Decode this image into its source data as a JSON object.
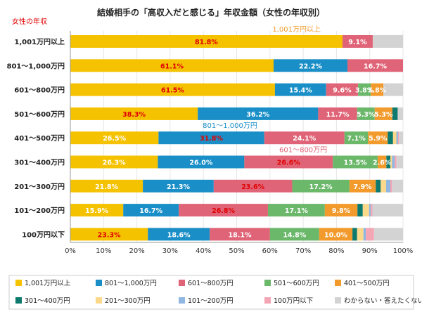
{
  "chart_data": {
    "type": "bar",
    "orientation": "horizontal",
    "stacked": true,
    "title": "結婚相手の「高収入だと感じる」年収金額（女性の年収別）",
    "ylabel": "女性の年収",
    "xlabel": "",
    "xlim": [
      0,
      100
    ],
    "x_ticks": [
      "0%",
      "10%",
      "20%",
      "30%",
      "40%",
      "50%",
      "60%",
      "70%",
      "80%",
      "90%",
      "100%"
    ],
    "legend_position": "bottom",
    "categories": [
      "1,001万円以上",
      "801〜1,000万円",
      "601〜800万円",
      "501〜600万円",
      "401〜500万円",
      "301〜400万円",
      "201〜300万円",
      "101〜200万円",
      "100万円以下"
    ],
    "series": [
      {
        "name": "1,001万円以上",
        "color": "#f5c200",
        "values": [
          81.8,
          61.1,
          61.5,
          38.3,
          26.5,
          26.3,
          21.8,
          15.9,
          23.3
        ]
      },
      {
        "name": "801〜1,000万円",
        "color": "#1a8fc7",
        "values": [
          0,
          22.2,
          15.4,
          36.2,
          31.8,
          26.0,
          21.3,
          16.7,
          18.6
        ]
      },
      {
        "name": "601〜800万円",
        "color": "#e06477",
        "values": [
          9.1,
          16.7,
          9.6,
          11.7,
          24.1,
          26.6,
          23.6,
          26.8,
          18.1
        ]
      },
      {
        "name": "501〜600万円",
        "color": "#6bb86b",
        "values": [
          0,
          0,
          3.8,
          5.3,
          7.1,
          13.5,
          17.2,
          17.1,
          14.8
        ]
      },
      {
        "name": "401〜500万円",
        "color": "#f39a2c",
        "values": [
          0,
          0,
          3.8,
          5.3,
          5.9,
          2.6,
          7.9,
          9.8,
          10.0
        ]
      },
      {
        "name": "301〜400万円",
        "color": "#0e7a6e",
        "values": [
          0,
          0,
          0,
          1.6,
          1.6,
          1.2,
          1.5,
          1.6,
          1.4
        ]
      },
      {
        "name": "201〜300万円",
        "color": "#fbd98a",
        "values": [
          0,
          0,
          0,
          0,
          1.0,
          0.5,
          1.6,
          1.9,
          1.9
        ]
      },
      {
        "name": "101〜200万円",
        "color": "#8fb7e2",
        "values": [
          0,
          0,
          0,
          0,
          0.5,
          0.8,
          1.3,
          0.5,
          0.7
        ]
      },
      {
        "name": "100万円以下",
        "color": "#f4a6b5",
        "values": [
          0,
          0,
          0,
          0,
          0.3,
          0.5,
          0.5,
          0.5,
          2.5
        ]
      },
      {
        "name": "わからない・答えたくない",
        "color": "#d3d3d3",
        "values": [
          9.1,
          0,
          5.9,
          1.6,
          1.2,
          2.0,
          3.3,
          9.2,
          8.7
        ]
      }
    ],
    "data_labels": [
      {
        "row": 0,
        "series": 0,
        "text": "81.8%",
        "color": "#e00000"
      },
      {
        "row": 0,
        "series": 2,
        "text": "9.1%",
        "color": "#ffffff"
      },
      {
        "row": 1,
        "series": 0,
        "text": "61.1%",
        "color": "#e00000"
      },
      {
        "row": 1,
        "series": 1,
        "text": "22.2%",
        "color": "#ffffff"
      },
      {
        "row": 1,
        "series": 2,
        "text": "16.7%",
        "color": "#ffffff"
      },
      {
        "row": 2,
        "series": 0,
        "text": "61.5%",
        "color": "#e00000"
      },
      {
        "row": 2,
        "series": 1,
        "text": "15.4%",
        "color": "#ffffff"
      },
      {
        "row": 2,
        "series": 2,
        "text": "9.6%",
        "color": "#ffffff"
      },
      {
        "row": 2,
        "series": 3,
        "text": "3.8%",
        "color": "#ffffff"
      },
      {
        "row": 2,
        "series": 4,
        "text": "3.8%",
        "color": "#ffffff"
      },
      {
        "row": 3,
        "series": 0,
        "text": "38.3%",
        "color": "#e00000"
      },
      {
        "row": 3,
        "series": 1,
        "text": "36.2%",
        "color": "#ffffff"
      },
      {
        "row": 3,
        "series": 2,
        "text": "11.7%",
        "color": "#ffffff"
      },
      {
        "row": 3,
        "series": 3,
        "text": "5.3%",
        "color": "#ffffff"
      },
      {
        "row": 3,
        "series": 4,
        "text": "5.3%",
        "color": "#ffffff"
      },
      {
        "row": 4,
        "series": 0,
        "text": "26.5%",
        "color": "#ffffff"
      },
      {
        "row": 4,
        "series": 1,
        "text": "31.8%",
        "color": "#e00000"
      },
      {
        "row": 4,
        "series": 2,
        "text": "24.1%",
        "color": "#ffffff"
      },
      {
        "row": 4,
        "series": 3,
        "text": "7.1%",
        "color": "#ffffff"
      },
      {
        "row": 4,
        "series": 4,
        "text": "5.9%",
        "color": "#ffffff"
      },
      {
        "row": 5,
        "series": 0,
        "text": "26.3%",
        "color": "#ffffff"
      },
      {
        "row": 5,
        "series": 1,
        "text": "26.0%",
        "color": "#ffffff"
      },
      {
        "row": 5,
        "series": 2,
        "text": "26.6%",
        "color": "#e00000"
      },
      {
        "row": 5,
        "series": 3,
        "text": "13.5%",
        "color": "#ffffff"
      },
      {
        "row": 5,
        "series": 4,
        "text": "2.6%",
        "color": "#ffffff"
      },
      {
        "row": 6,
        "series": 0,
        "text": "21.8%",
        "color": "#ffffff"
      },
      {
        "row": 6,
        "series": 1,
        "text": "21.3%",
        "color": "#ffffff"
      },
      {
        "row": 6,
        "series": 2,
        "text": "23.6%",
        "color": "#e00000"
      },
      {
        "row": 6,
        "series": 3,
        "text": "17.2%",
        "color": "#ffffff"
      },
      {
        "row": 6,
        "series": 4,
        "text": "7.9%",
        "color": "#ffffff"
      },
      {
        "row": 7,
        "series": 0,
        "text": "15.9%",
        "color": "#ffffff"
      },
      {
        "row": 7,
        "series": 1,
        "text": "16.7%",
        "color": "#ffffff"
      },
      {
        "row": 7,
        "series": 2,
        "text": "26.8%",
        "color": "#e00000"
      },
      {
        "row": 7,
        "series": 3,
        "text": "17.1%",
        "color": "#ffffff"
      },
      {
        "row": 7,
        "series": 4,
        "text": "9.8%",
        "color": "#ffffff"
      },
      {
        "row": 8,
        "series": 0,
        "text": "23.3%",
        "color": "#e00000"
      },
      {
        "row": 8,
        "series": 1,
        "text": "18.6%",
        "color": "#ffffff"
      },
      {
        "row": 8,
        "series": 2,
        "text": "18.1%",
        "color": "#ffffff"
      },
      {
        "row": 8,
        "series": 3,
        "text": "14.8%",
        "color": "#ffffff"
      },
      {
        "row": 8,
        "series": 4,
        "text": "10.0%",
        "color": "#ffffff"
      }
    ],
    "annotations": [
      {
        "text": "1,001万円以上",
        "color": "#f39a2c",
        "anchor_row": 0,
        "anchor_x": 68
      },
      {
        "text": "801〜1,000万円",
        "color": "#1a8fc7",
        "anchor_row": 4,
        "anchor_x": 48
      },
      {
        "text": "601〜800万円",
        "color": "#e06477",
        "anchor_row": 5,
        "anchor_x": 70
      }
    ]
  }
}
